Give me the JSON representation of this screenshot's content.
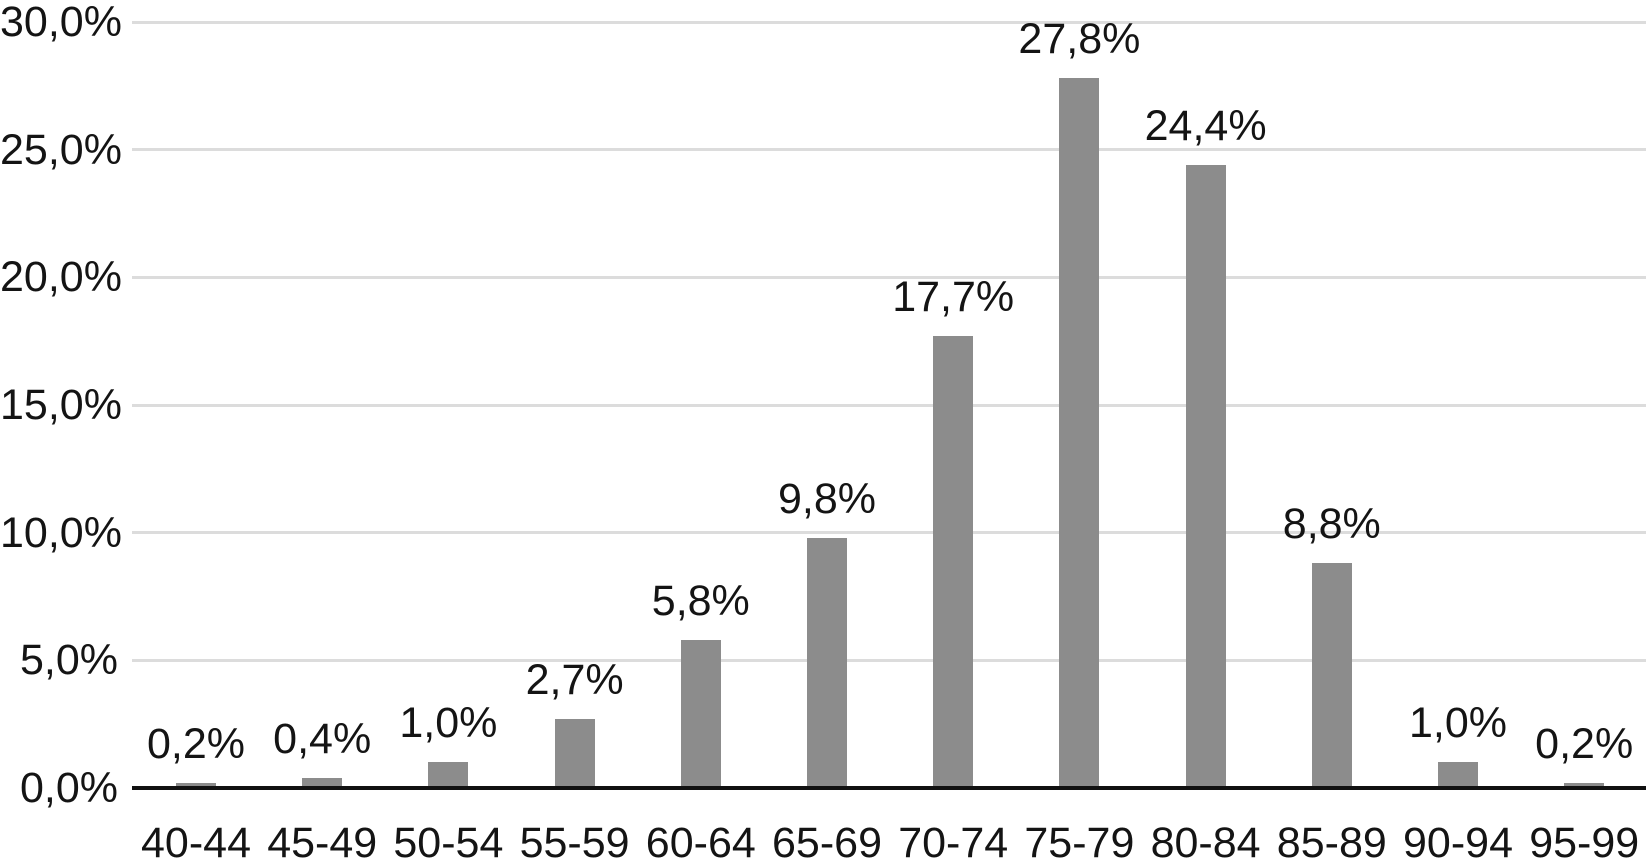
{
  "chart_data": {
    "type": "bar",
    "title": "",
    "xlabel": "",
    "ylabel": "",
    "categories": [
      "40-44",
      "45-49",
      "50-54",
      "55-59",
      "60-64",
      "65-69",
      "70-74",
      "75-79",
      "80-84",
      "85-89",
      "90-94",
      "95-99"
    ],
    "values": [
      0.2,
      0.4,
      1.0,
      2.7,
      5.8,
      9.8,
      17.7,
      27.8,
      24.4,
      8.8,
      1.0,
      0.2
    ],
    "data_labels": [
      "0,2%",
      "0,4%",
      "1,0%",
      "2,7%",
      "5,8%",
      "9,8%",
      "17,7%",
      "27,8%",
      "24,4%",
      "8,8%",
      "1,0%",
      "0,2%"
    ],
    "y_ticks": [
      {
        "value": 0,
        "label": "0,0%"
      },
      {
        "value": 5,
        "label": "5,0%"
      },
      {
        "value": 10,
        "label": "10,0%"
      },
      {
        "value": 15,
        "label": "15,0%"
      },
      {
        "value": 20,
        "label": "20,0%"
      },
      {
        "value": 25,
        "label": "25,0%"
      },
      {
        "value": 30,
        "label": "30,0%"
      }
    ],
    "ylim": [
      0,
      30
    ],
    "grid": "horizontal",
    "legend": "none",
    "colors": {
      "bar_fill": "#8c8c8c",
      "gridline": "#dcdcdc",
      "axis_line": "#111111",
      "text": "#141414",
      "background": "#ffffff"
    }
  }
}
